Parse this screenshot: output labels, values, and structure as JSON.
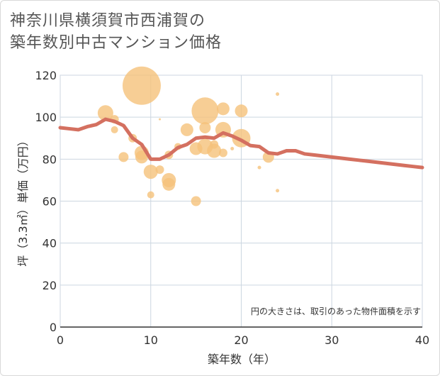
{
  "title_line1": "神奈川県横須賀市西浦賀の",
  "title_line2": "築年数別中古マンション価格",
  "chart_data": {
    "type": "scatter+line",
    "xlabel": "築年数（年）",
    "ylabel": "坪（3.3㎡）単価（万円）",
    "xlim": [
      0,
      40
    ],
    "ylim": [
      0,
      120
    ],
    "xticks": [
      0,
      10,
      20,
      30,
      40
    ],
    "yticks": [
      0,
      20,
      40,
      60,
      80,
      100,
      120
    ],
    "grid": true,
    "note": "円の大きさは、取引のあった物件面積を示す",
    "colors": {
      "bubble": "#f5c27a",
      "line": "#d47060",
      "grid": "#ccd6e0"
    },
    "bubbles": [
      {
        "x": 9,
        "y": 115,
        "size": 27
      },
      {
        "x": 5,
        "y": 102,
        "size": 11
      },
      {
        "x": 6,
        "y": 99,
        "size": 6
      },
      {
        "x": 6,
        "y": 94,
        "size": 5
      },
      {
        "x": 7,
        "y": 81,
        "size": 7
      },
      {
        "x": 8,
        "y": 90,
        "size": 6
      },
      {
        "x": 9,
        "y": 83,
        "size": 10
      },
      {
        "x": 9,
        "y": 81,
        "size": 9
      },
      {
        "x": 10,
        "y": 74,
        "size": 10
      },
      {
        "x": 10,
        "y": 63,
        "size": 5
      },
      {
        "x": 11,
        "y": 75,
        "size": 6
      },
      {
        "x": 11,
        "y": 99,
        "size": 1.5
      },
      {
        "x": 12,
        "y": 70,
        "size": 10
      },
      {
        "x": 12,
        "y": 68,
        "size": 9
      },
      {
        "x": 12,
        "y": 82,
        "size": 6
      },
      {
        "x": 13,
        "y": 86,
        "size": 5
      },
      {
        "x": 14,
        "y": 94,
        "size": 9
      },
      {
        "x": 15,
        "y": 85,
        "size": 9
      },
      {
        "x": 15,
        "y": 60,
        "size": 7
      },
      {
        "x": 16,
        "y": 103,
        "size": 19
      },
      {
        "x": 16,
        "y": 95,
        "size": 8
      },
      {
        "x": 16,
        "y": 86,
        "size": 11
      },
      {
        "x": 17,
        "y": 84,
        "size": 10
      },
      {
        "x": 17,
        "y": 87,
        "size": 6
      },
      {
        "x": 18,
        "y": 104,
        "size": 9
      },
      {
        "x": 18,
        "y": 94,
        "size": 11
      },
      {
        "x": 18,
        "y": 83,
        "size": 6
      },
      {
        "x": 19,
        "y": 85,
        "size": 2.5
      },
      {
        "x": 20,
        "y": 103,
        "size": 9
      },
      {
        "x": 20,
        "y": 90,
        "size": 13
      },
      {
        "x": 22,
        "y": 76,
        "size": 2.5
      },
      {
        "x": 23,
        "y": 81,
        "size": 8
      },
      {
        "x": 24,
        "y": 111,
        "size": 2.5
      },
      {
        "x": 24,
        "y": 65,
        "size": 2.5
      }
    ],
    "trend": {
      "x": [
        0,
        1,
        2,
        3,
        4,
        5,
        6,
        7,
        8,
        9,
        10,
        11,
        12,
        13,
        14,
        15,
        16,
        17,
        18,
        19,
        20,
        21,
        22,
        23,
        24,
        25,
        26,
        27,
        28,
        29,
        30,
        31,
        32,
        33,
        34,
        35,
        36,
        37,
        38,
        39,
        40
      ],
      "y": [
        95,
        94.5,
        94,
        95.5,
        96.5,
        99,
        98,
        96,
        90,
        87,
        80,
        80,
        82,
        85.5,
        87,
        90,
        90.5,
        90,
        92.5,
        91,
        89,
        86.5,
        86,
        83,
        82.5,
        84,
        84,
        82.5,
        82,
        81.5,
        81,
        80.5,
        80,
        79.5,
        79,
        78.5,
        78,
        77.5,
        77,
        76.5,
        76
      ]
    }
  }
}
